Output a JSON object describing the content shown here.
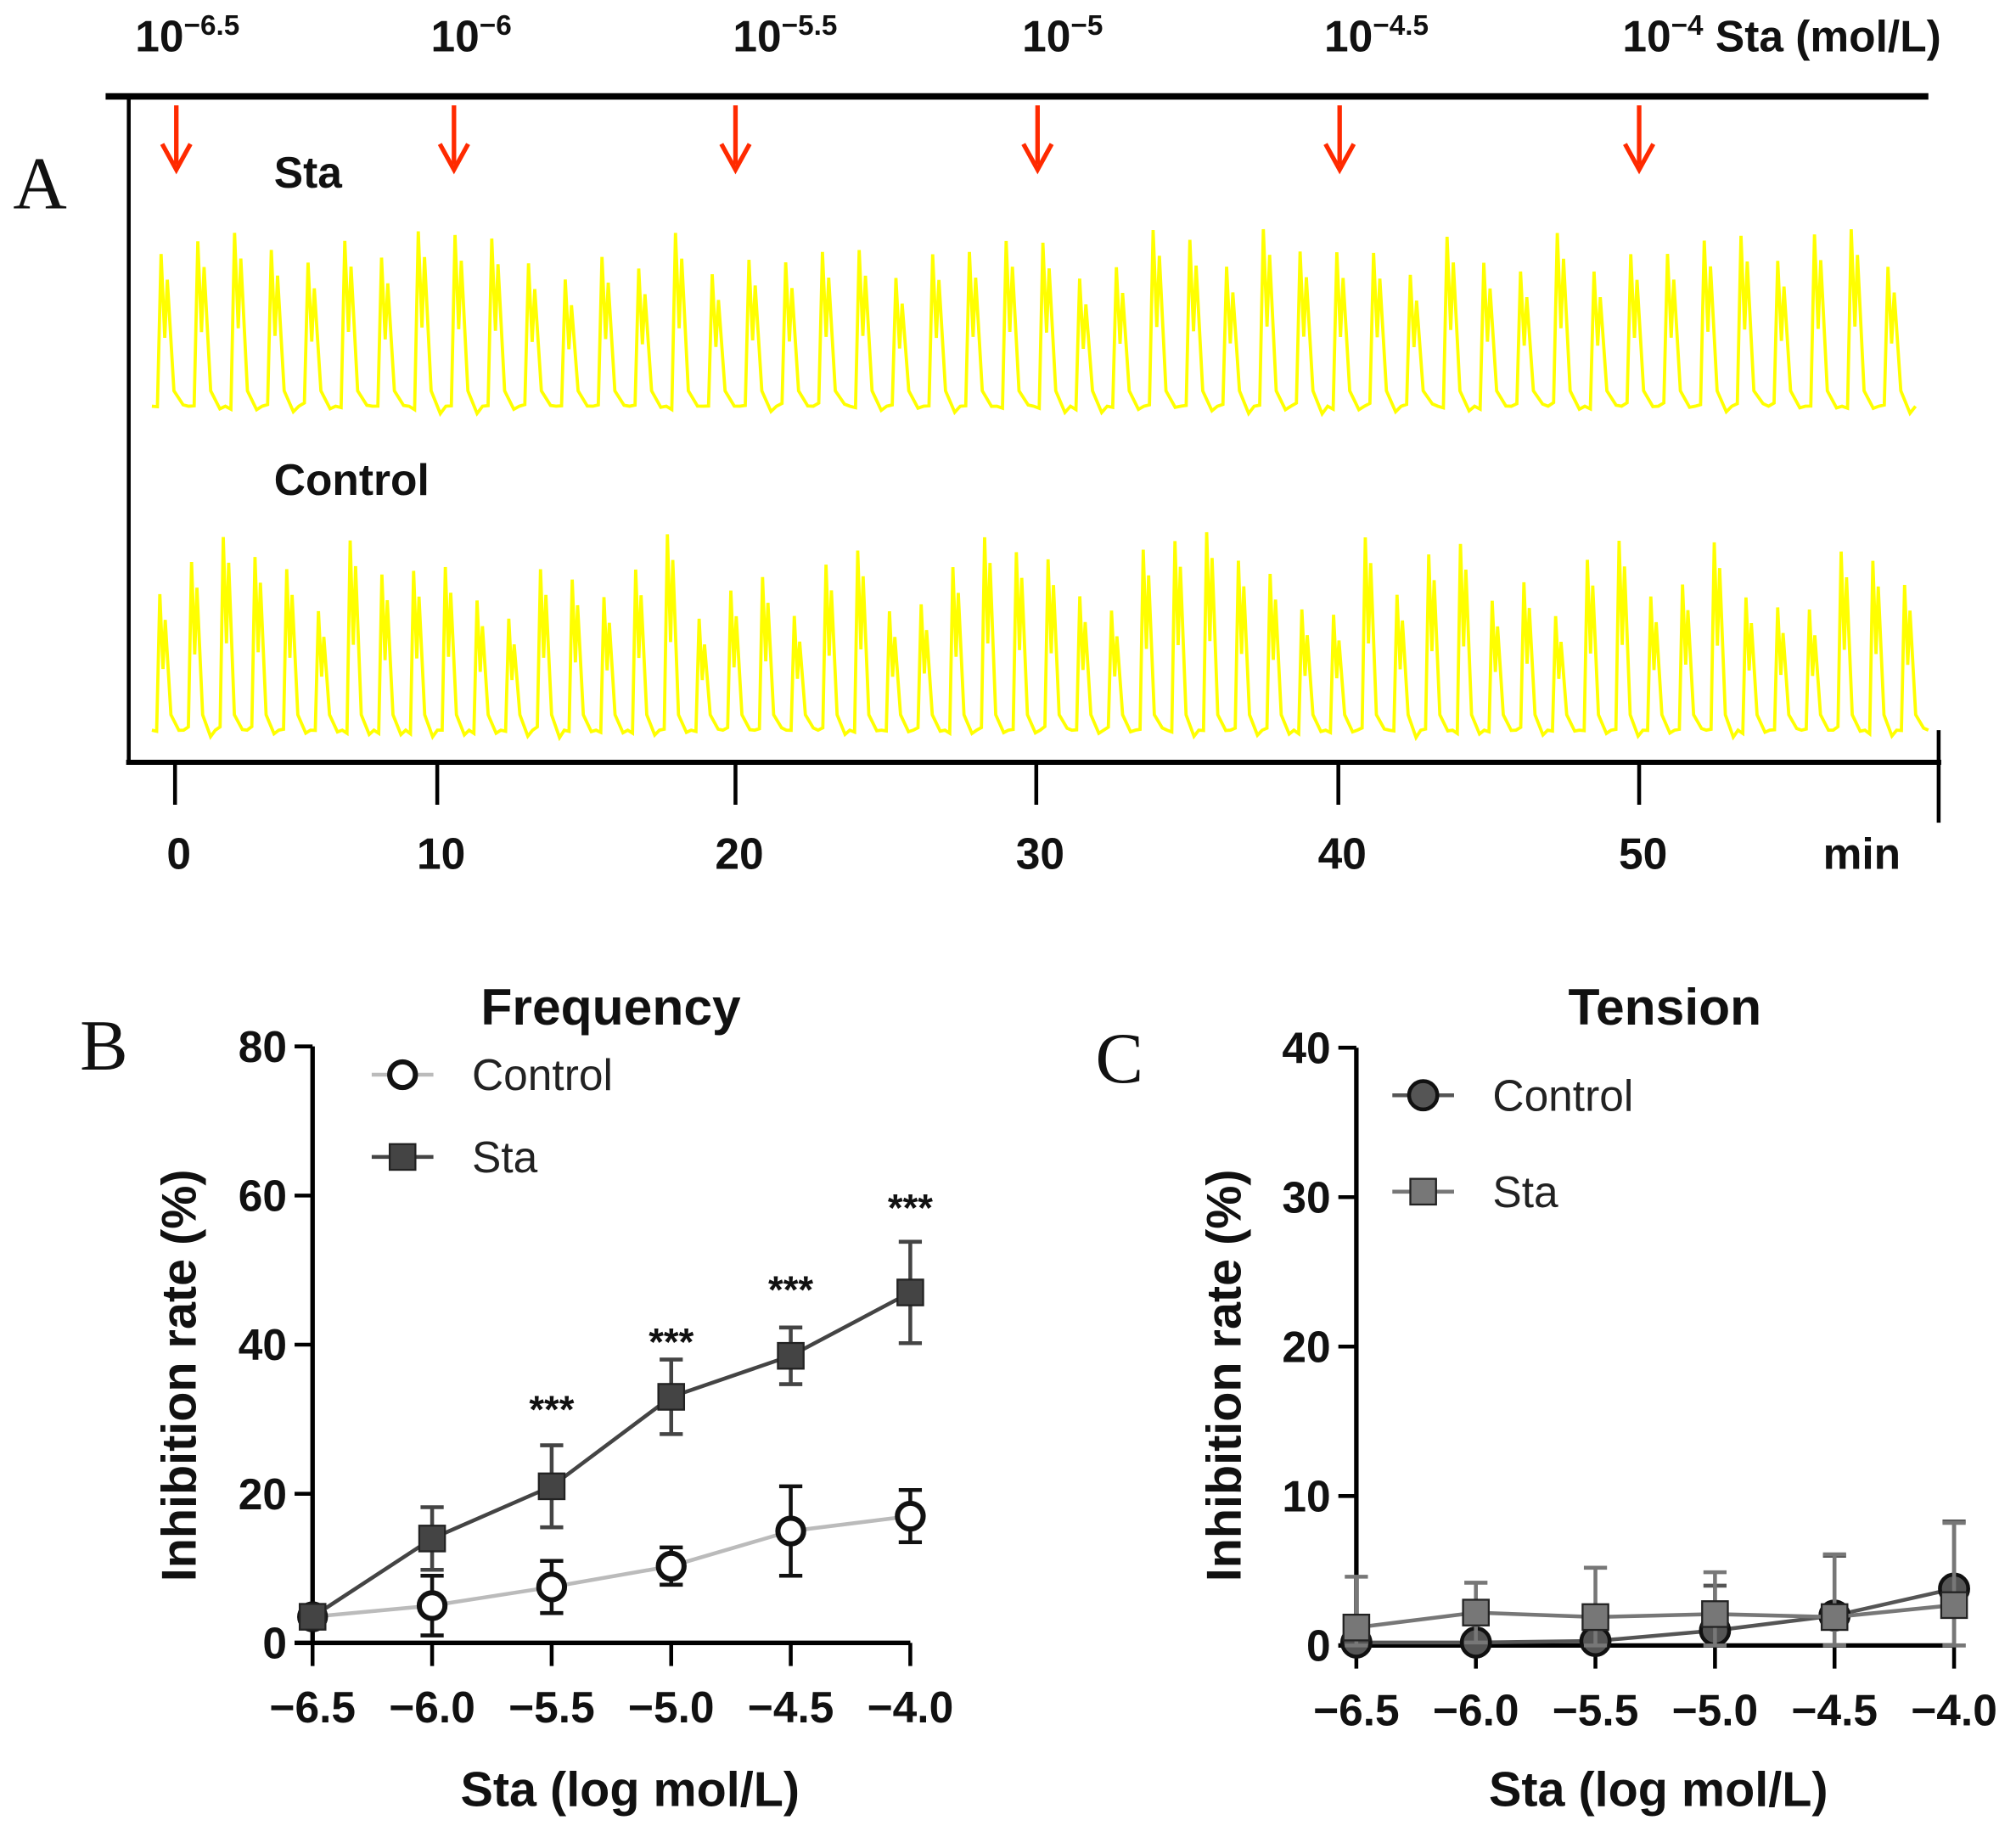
{
  "panel_labels": {
    "a": "A",
    "b": "B",
    "c": "C"
  },
  "chart_data": [
    {
      "type": "line",
      "panel": "A",
      "description_labels": {
        "trace_top": "Sta",
        "trace_bottom": "Control"
      },
      "concentration_labels": [
        {
          "base": "10",
          "exp": "−6.5"
        },
        {
          "base": "10",
          "exp": "−6"
        },
        {
          "base": "10",
          "exp": "−5.5"
        },
        {
          "base": "10",
          "exp": "−5"
        },
        {
          "base": "10",
          "exp": "−4.5"
        },
        {
          "base": "10",
          "exp": "−4",
          "suffix": " Sta (mol/L)"
        }
      ],
      "arrow_times_min": [
        0,
        10,
        20,
        30,
        40,
        50
      ],
      "x_ticks": [
        "0",
        "10",
        "20",
        "30",
        "40",
        "50"
      ],
      "x_tick_values": [
        0,
        10,
        20,
        30,
        40,
        50
      ],
      "xlabel": "min",
      "trace_color": "#ffff00",
      "arrow_color": "#ff2a00"
    },
    {
      "type": "line",
      "panel": "B",
      "title": "Frequency",
      "xlabel": "Sta (log mol/L)",
      "ylabel": "Inhibition rate (%)",
      "x": [
        -6.5,
        -6.0,
        -5.5,
        -5.0,
        -4.5,
        -4.0
      ],
      "x_ticks": [
        "−6.5",
        "−6.0",
        "−5.5",
        "−5.0",
        "−4.5",
        "−4.0"
      ],
      "y_ticks": [
        "0",
        "20",
        "40",
        "60",
        "80"
      ],
      "xlim": [
        -6.5,
        -4.0
      ],
      "ylim": [
        0,
        80
      ],
      "legend": "top-left",
      "series": [
        {
          "name": "Control",
          "marker": "open-circle",
          "color": "#bbbbbb",
          "values": [
            3.5,
            5,
            7.5,
            10.3,
            15,
            17
          ],
          "errors": [
            0.5,
            4,
            3.5,
            2.5,
            6,
            3.5
          ]
        },
        {
          "name": "Sta",
          "marker": "filled-square",
          "color": "#444444",
          "values": [
            3.5,
            14,
            21,
            33,
            38.5,
            47
          ],
          "errors": [
            0.5,
            4.2,
            5.5,
            5,
            3.8,
            6.8
          ]
        }
      ],
      "annotations": [
        {
          "x": -5.5,
          "y": 33,
          "text": "***"
        },
        {
          "x": -5.0,
          "y": 42,
          "text": "***"
        },
        {
          "x": -4.5,
          "y": 49,
          "text": "***"
        },
        {
          "x": -4.0,
          "y": 60,
          "text": "***"
        }
      ]
    },
    {
      "type": "line",
      "panel": "C",
      "title": "Tension",
      "xlabel": "Sta (log mol/L)",
      "ylabel": "Inhibition rate (%)",
      "x": [
        -6.5,
        -6.0,
        -5.5,
        -5.0,
        -4.5,
        -4.0
      ],
      "x_ticks": [
        "−6.5",
        "−6.0",
        "−5.5",
        "−5.0",
        "−4.5",
        "−4.0"
      ],
      "y_ticks": [
        "0",
        "10",
        "20",
        "30",
        "40"
      ],
      "xlim": [
        -6.5,
        -4.0
      ],
      "ylim": [
        0,
        40
      ],
      "legend": "top-left",
      "series": [
        {
          "name": "Control",
          "marker": "filled-circle",
          "color": "#555555",
          "values": [
            0.2,
            0.2,
            0.3,
            1.0,
            2.0,
            3.8
          ],
          "errors": [
            0.5,
            0.5,
            0.8,
            3.0,
            4.0,
            4.5
          ]
        },
        {
          "name": "Sta",
          "marker": "filled-square",
          "color": "#777777",
          "values": [
            1.2,
            2.2,
            1.9,
            2.1,
            1.9,
            2.7
          ],
          "errors": [
            3.4,
            2.0,
            3.3,
            2.8,
            4.2,
            5.5
          ]
        }
      ],
      "annotations": []
    }
  ]
}
